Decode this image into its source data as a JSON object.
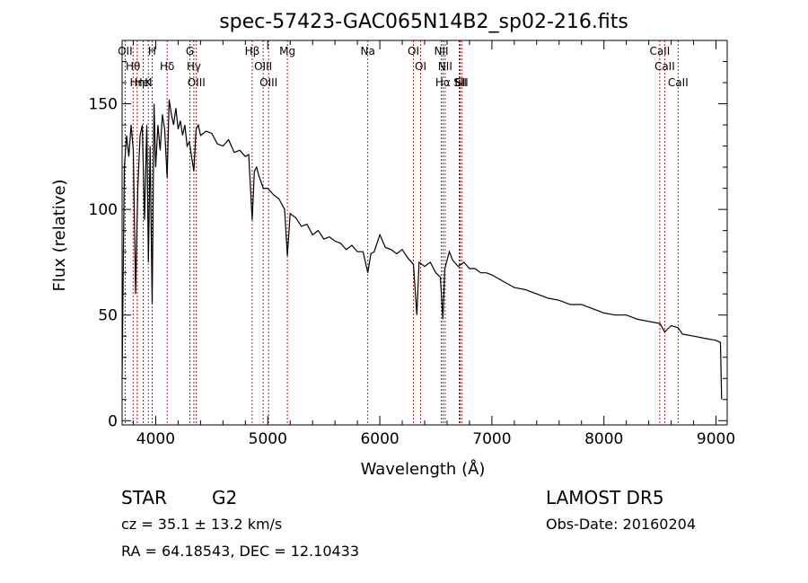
{
  "chart_data": {
    "type": "line",
    "title": "spec-57423-GAC065N14B2_sp02-216.fits",
    "xlabel": "Wavelength (Å)",
    "ylabel": "Flux (relative)",
    "xlim": [
      3700,
      9100
    ],
    "ylim": [
      -2,
      180
    ],
    "xticks": [
      4000,
      5000,
      6000,
      7000,
      8000,
      9000
    ],
    "yticks": [
      0,
      50,
      100,
      150
    ],
    "grid": false,
    "series": [
      {
        "x": [
          3700,
          3720,
          3740,
          3760,
          3780,
          3800,
          3820,
          3840,
          3860,
          3880,
          3900,
          3920,
          3935,
          3950,
          3968,
          3985,
          4000,
          4020,
          4040,
          4060,
          4080,
          4102,
          4120,
          4140,
          4160,
          4180,
          4200,
          4220,
          4240,
          4260,
          4280,
          4300,
          4320,
          4340,
          4360,
          4380,
          4400,
          4450,
          4500,
          4550,
          4600,
          4650,
          4700,
          4750,
          4800,
          4830,
          4861,
          4880,
          4900,
          4920,
          4960,
          5000,
          5050,
          5100,
          5150,
          5175,
          5200,
          5250,
          5300,
          5350,
          5400,
          5450,
          5500,
          5550,
          5600,
          5650,
          5700,
          5750,
          5800,
          5850,
          5893,
          5920,
          5950,
          6000,
          6050,
          6100,
          6150,
          6200,
          6250,
          6300,
          6330,
          6350,
          6400,
          6450,
          6500,
          6540,
          6563,
          6580,
          6600,
          6620,
          6650,
          6700,
          6750,
          6800,
          6850,
          6900,
          6950,
          7000,
          7100,
          7200,
          7300,
          7400,
          7500,
          7600,
          7700,
          7800,
          7900,
          8000,
          8100,
          8200,
          8300,
          8400,
          8500,
          8542,
          8600,
          8662,
          8700,
          8800,
          8900,
          9000,
          9040,
          9050
        ],
        "y": [
          20,
          120,
          135,
          125,
          140,
          128,
          60,
          110,
          135,
          140,
          95,
          140,
          75,
          130,
          55,
          150,
          120,
          140,
          128,
          145,
          138,
          115,
          152,
          145,
          140,
          148,
          138,
          142,
          135,
          140,
          130,
          132,
          125,
          118,
          138,
          140,
          135,
          137,
          136,
          131,
          130,
          133,
          127,
          128,
          125,
          126,
          95,
          118,
          120,
          116,
          110,
          110,
          107,
          105,
          100,
          78,
          98,
          96,
          92,
          93,
          88,
          90,
          86,
          87,
          85,
          84,
          81,
          83,
          80,
          80,
          70,
          79,
          80,
          88,
          82,
          81,
          79,
          81,
          77,
          74,
          50,
          75,
          73,
          75,
          70,
          68,
          48,
          72,
          76,
          80,
          76,
          73,
          75,
          72,
          72,
          70,
          70,
          69,
          66,
          63,
          62,
          60,
          58,
          57,
          55,
          55,
          53,
          51,
          50,
          50,
          48,
          47,
          46,
          42,
          45,
          44,
          41,
          40,
          39,
          38,
          37,
          10
        ]
      }
    ],
    "line_marks": [
      {
        "label": "OII",
        "x": 3727
      },
      {
        "label": "Hθ",
        "x": 3798
      },
      {
        "label": "Hη",
        "x": 3835
      },
      {
        "label": "HeI",
        "x": 3889
      },
      {
        "label": "K",
        "x": 3934
      },
      {
        "label": "H",
        "x": 3968
      },
      {
        "label": "Hδ",
        "x": 4102
      },
      {
        "label": "G",
        "x": 4305
      },
      {
        "label": "Hγ",
        "x": 4340
      },
      {
        "label": "OIII",
        "x": 4363
      },
      {
        "label": "Hβ",
        "x": 4861
      },
      {
        "label": "OIII",
        "x": 4959
      },
      {
        "label": "OIII",
        "x": 5007
      },
      {
        "label": "Mg",
        "x": 5175
      },
      {
        "label": "Na",
        "x": 5893
      },
      {
        "label": "OI",
        "x": 6300
      },
      {
        "label": "OI",
        "x": 6364
      },
      {
        "label": "NII",
        "x": 6548
      },
      {
        "label": "Hα",
        "x": 6563
      },
      {
        "label": "NII",
        "x": 6583
      },
      {
        "label": "Li",
        "x": 6708
      },
      {
        "label": "SII",
        "x": 6717
      },
      {
        "label": "SII",
        "x": 6731
      },
      {
        "label": "CaII",
        "x": 8498
      },
      {
        "label": "CaII",
        "x": 8542
      },
      {
        "label": "CaII",
        "x": 8662
      }
    ]
  },
  "info": {
    "class": "STAR",
    "subclass": "G2",
    "survey": "LAMOST  DR5",
    "cz": "cz = 35.1 ± 13.2 km/s",
    "obs_date": "Obs-Date: 20160204",
    "coords": "RA =  64.18543, DEC =  12.10433"
  },
  "colors": {
    "spectrum": "#000000",
    "line_marks": "#b00000"
  }
}
